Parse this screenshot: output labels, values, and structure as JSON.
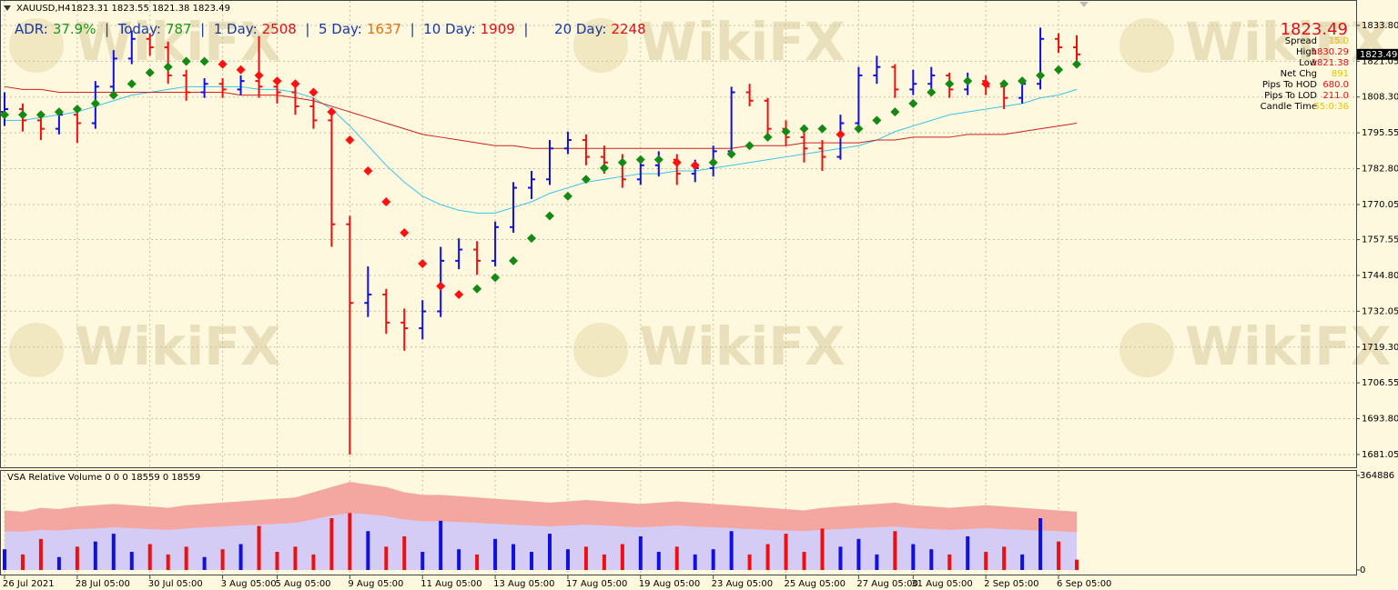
{
  "header": {
    "symbol": "XAUUSD,H4",
    "quote": "1823.31 1823.55 1821.38 1823.49"
  },
  "adr": [
    {
      "label": "ADR:",
      "value": "37.9%",
      "color": "#1a9a1a"
    },
    {
      "label": "|  Today:",
      "value": "787",
      "color": "#1a9a1a"
    },
    {
      "label": "|  1 Day:",
      "value": "2508",
      "color": "#e0101a"
    },
    {
      "label": "|  5 Day:",
      "value": "1637",
      "color": "#e8700f"
    },
    {
      "label": "|  10 Day:",
      "value": "1909",
      "color": "#e0101a"
    },
    {
      "label": "|      20 Day:",
      "value": "2248",
      "color": "#e0101a"
    }
  ],
  "info": {
    "price": "1823.49",
    "rows": [
      {
        "label": "Spread",
        "value": "15.0",
        "color": "#e8c400"
      },
      {
        "label": "High",
        "value": "1830.29",
        "color": "#e0101a"
      },
      {
        "label": "Low",
        "value": "1821.38",
        "color": "#e0101a"
      },
      {
        "label": "Net Chg",
        "value": "891",
        "color": "#e8c400"
      },
      {
        "label": "Pips To HOD",
        "value": "680.0",
        "color": "#e0101a"
      },
      {
        "label": "Pips To LOD",
        "value": "211.0",
        "color": "#e0101a"
      },
      {
        "label": "Candle Time",
        "value": "55:0:36",
        "color": "#e8c400"
      }
    ]
  },
  "watermark": "WikiFX",
  "chart_data": [
    {
      "type": "ohlc",
      "categories": [
        "26 Jul 2021",
        null,
        null,
        null,
        "28 Jul 05:00",
        null,
        null,
        null,
        "30 Jul 05:00",
        null,
        null,
        null,
        "3 Aug 05:00",
        null,
        null,
        "5 Aug 05:00",
        null,
        null,
        null,
        "9 Aug 05:00",
        null,
        null,
        null,
        "11 Aug 05:00",
        null,
        null,
        null,
        "13 Aug 05:00",
        null,
        null,
        null,
        "17 Aug 05:00",
        null,
        null,
        null,
        "19 Aug 05:00",
        null,
        null,
        null,
        "23 Aug 05:00",
        null,
        null,
        null,
        "25 Aug 05:00",
        null,
        null,
        null,
        "27 Aug 05:00",
        null,
        null,
        "31 Aug 05:00",
        null,
        null,
        null,
        "2 Sep 05:00",
        null,
        null,
        null,
        "6 Sep 05:00",
        null
      ],
      "open": [
        1803,
        1804,
        1800,
        1797,
        1802,
        1799,
        1812,
        1822,
        1829,
        1826,
        1816,
        1810,
        1813,
        1811,
        1814,
        1812,
        1810,
        1805,
        1800,
        1763,
        1735,
        1738,
        1728,
        1726,
        1732,
        1750,
        1754,
        1750,
        1762,
        1776,
        1779,
        1790,
        1793,
        1787,
        1785,
        1779,
        1784,
        1786,
        1781,
        1783,
        1789,
        1810,
        1807,
        1797,
        1794,
        1790,
        1787,
        1799,
        1816,
        1819,
        1811,
        1813,
        1816,
        1811,
        1814,
        1812,
        1808,
        1813,
        1829,
        1826
      ],
      "high": [
        1810,
        1806,
        1803,
        1804,
        1805,
        1814,
        1825,
        1832,
        1831,
        1828,
        1818,
        1815,
        1815,
        1816,
        1830,
        1814,
        1812,
        1808,
        1802,
        1766,
        1748,
        1740,
        1733,
        1736,
        1755,
        1758,
        1757,
        1764,
        1778,
        1782,
        1793,
        1796,
        1795,
        1791,
        1788,
        1787,
        1789,
        1788,
        1786,
        1791,
        1812,
        1813,
        1808,
        1800,
        1797,
        1793,
        1802,
        1819,
        1823,
        1820,
        1818,
        1819,
        1817,
        1817,
        1816,
        1814,
        1815,
        1833,
        1831,
        1830.29
      ],
      "low": [
        1798,
        1796,
        1793,
        1795,
        1792,
        1797,
        1810,
        1820,
        1823,
        1813,
        1807,
        1808,
        1808,
        1809,
        1808,
        1806,
        1802,
        1797,
        1755,
        1681.05,
        1730,
        1724,
        1718,
        1722,
        1730,
        1747,
        1745,
        1748,
        1760,
        1772,
        1777,
        1788,
        1784,
        1781,
        1776,
        1777,
        1780,
        1777,
        1778,
        1780,
        1787,
        1805,
        1794,
        1791,
        1785,
        1782,
        1786,
        1796,
        1813,
        1808,
        1809,
        1810,
        1808,
        1809,
        1809,
        1804,
        1806,
        1811,
        1824,
        1821.38
      ],
      "close": [
        1804,
        1800,
        1797,
        1802,
        1799,
        1812,
        1822,
        1829,
        1826,
        1816,
        1810,
        1813,
        1811,
        1814,
        1812,
        1810,
        1805,
        1800,
        1763,
        1735,
        1738,
        1728,
        1726,
        1732,
        1750,
        1754,
        1750,
        1762,
        1776,
        1779,
        1790,
        1793,
        1787,
        1785,
        1779,
        1784,
        1786,
        1781,
        1783,
        1789,
        1810,
        1807,
        1797,
        1794,
        1790,
        1787,
        1799,
        1816,
        1819,
        1811,
        1813,
        1816,
        1811,
        1814,
        1812,
        1808,
        1813,
        1829,
        1826,
        1823.49
      ],
      "up_color": "#1010e0",
      "down_color": "#ee1010",
      "signal": {
        "up_color": "#148a14",
        "down_color": "#ff1010",
        "values": [
          1802,
          1802,
          1802,
          1803,
          1804,
          1806,
          1809,
          1813,
          1817,
          1819,
          1821,
          1821,
          1820,
          1818,
          1816,
          1814,
          1813,
          1810,
          1803,
          1793,
          1782,
          1771,
          1760,
          1749,
          1741,
          1738,
          1740,
          1744,
          1750,
          1758,
          1766,
          1773,
          1779,
          1783,
          1785,
          1786,
          1786,
          1785,
          1784,
          1785,
          1788,
          1791,
          1794,
          1796,
          1797,
          1797,
          1795,
          1797,
          1800,
          1803,
          1806,
          1810,
          1813,
          1814,
          1813,
          1813,
          1814,
          1816,
          1818,
          1820
        ]
      },
      "lines": [
        {
          "color": "#38c4e8",
          "values": [
            1800,
            1800,
            1801,
            1802,
            1803,
            1805,
            1807,
            1809,
            1810,
            1811,
            1812,
            1812,
            1812,
            1812,
            1811,
            1811,
            1810,
            1808,
            1804,
            1798,
            1791,
            1784,
            1778,
            1773,
            1770,
            1768,
            1767,
            1767,
            1769,
            1771,
            1774,
            1776,
            1778,
            1779,
            1780,
            1781,
            1781,
            1782,
            1782,
            1783,
            1784,
            1785,
            1786,
            1787,
            1788,
            1789,
            1790,
            1791,
            1793,
            1796,
            1798,
            1800,
            1802,
            1803,
            1804,
            1805,
            1806,
            1808,
            1809,
            1811
          ]
        },
        {
          "color": "#d02020",
          "values": [
            1812,
            1811,
            1811,
            1810,
            1810,
            1810,
            1810,
            1810,
            1810,
            1810,
            1810,
            1810,
            1810,
            1809,
            1809,
            1809,
            1808,
            1807,
            1805,
            1803,
            1801,
            1799,
            1797,
            1795,
            1794,
            1793,
            1792,
            1791,
            1791,
            1790,
            1790,
            1790,
            1790,
            1790,
            1790,
            1790,
            1790,
            1790,
            1790,
            1790,
            1790,
            1791,
            1791,
            1791,
            1792,
            1792,
            1792,
            1792,
            1793,
            1793,
            1794,
            1794,
            1794,
            1795,
            1795,
            1795,
            1796,
            1797,
            1798,
            1799
          ]
        }
      ],
      "last_price": 1823.49,
      "ylim": [
        1676.5,
        1842.2
      ],
      "yticks": [
        {
          "value": 1833.8,
          "label": "1833.80"
        },
        1821.05,
        {
          "value": 1808.3,
          "label": "1808.30"
        },
        1795.55,
        {
          "value": 1782.8,
          "label": "1782.80"
        },
        1770.05,
        1757.55,
        {
          "value": 1744.8,
          "label": "1744.80"
        },
        1732.05,
        {
          "value": 1719.3,
          "label": "1719.30"
        },
        1706.55,
        {
          "value": 1693.8,
          "label": "1693.80"
        },
        1681.05
      ],
      "grid": true
    },
    {
      "type": "bar",
      "title": "VSA Relative Volume 0 0 0 18559 0 18559",
      "values": [
        80000,
        60000,
        120000,
        50000,
        90000,
        110000,
        140000,
        70000,
        100000,
        60000,
        90000,
        50000,
        80000,
        100000,
        170000,
        70000,
        90000,
        60000,
        200000,
        220000,
        150000,
        90000,
        130000,
        70000,
        190000,
        80000,
        60000,
        120000,
        100000,
        70000,
        140000,
        80000,
        90000,
        60000,
        100000,
        130000,
        70000,
        90000,
        60000,
        80000,
        150000,
        60000,
        100000,
        140000,
        70000,
        160000,
        90000,
        120000,
        60000,
        150000,
        100000,
        80000,
        60000,
        130000,
        70000,
        90000,
        60000,
        200000,
        110000,
        40000
      ],
      "band_high": [
        230000,
        225000,
        240000,
        235000,
        245000,
        250000,
        255000,
        250000,
        245000,
        240000,
        250000,
        255000,
        260000,
        265000,
        270000,
        275000,
        280000,
        300000,
        320000,
        340000,
        330000,
        320000,
        300000,
        290000,
        290000,
        285000,
        280000,
        275000,
        270000,
        265000,
        260000,
        265000,
        270000,
        265000,
        260000,
        255000,
        260000,
        265000,
        260000,
        255000,
        250000,
        245000,
        240000,
        235000,
        230000,
        240000,
        245000,
        250000,
        255000,
        260000,
        250000,
        245000,
        240000,
        245000,
        250000,
        245000,
        240000,
        235000,
        230000,
        225000
      ],
      "band_low": [
        150000,
        148000,
        155000,
        152000,
        158000,
        160000,
        165000,
        162000,
        158000,
        155000,
        160000,
        165000,
        168000,
        172000,
        175000,
        178000,
        182000,
        195000,
        210000,
        220000,
        215000,
        208000,
        195000,
        188000,
        188000,
        185000,
        182000,
        178000,
        175000,
        172000,
        168000,
        172000,
        175000,
        172000,
        168000,
        165000,
        168000,
        172000,
        168000,
        165000,
        162000,
        158000,
        155000,
        152000,
        150000,
        155000,
        158000,
        162000,
        165000,
        168000,
        162000,
        158000,
        155000,
        158000,
        162000,
        158000,
        155000,
        152000,
        150000,
        146000
      ],
      "band_high_color": "#f4a6a0",
      "band_low_color": "#d4ccf4",
      "up_color": "#1010e0",
      "down_color": "#ee1010",
      "ylim": [
        0,
        364886
      ],
      "yticks": [
        0,
        364886
      ]
    }
  ]
}
